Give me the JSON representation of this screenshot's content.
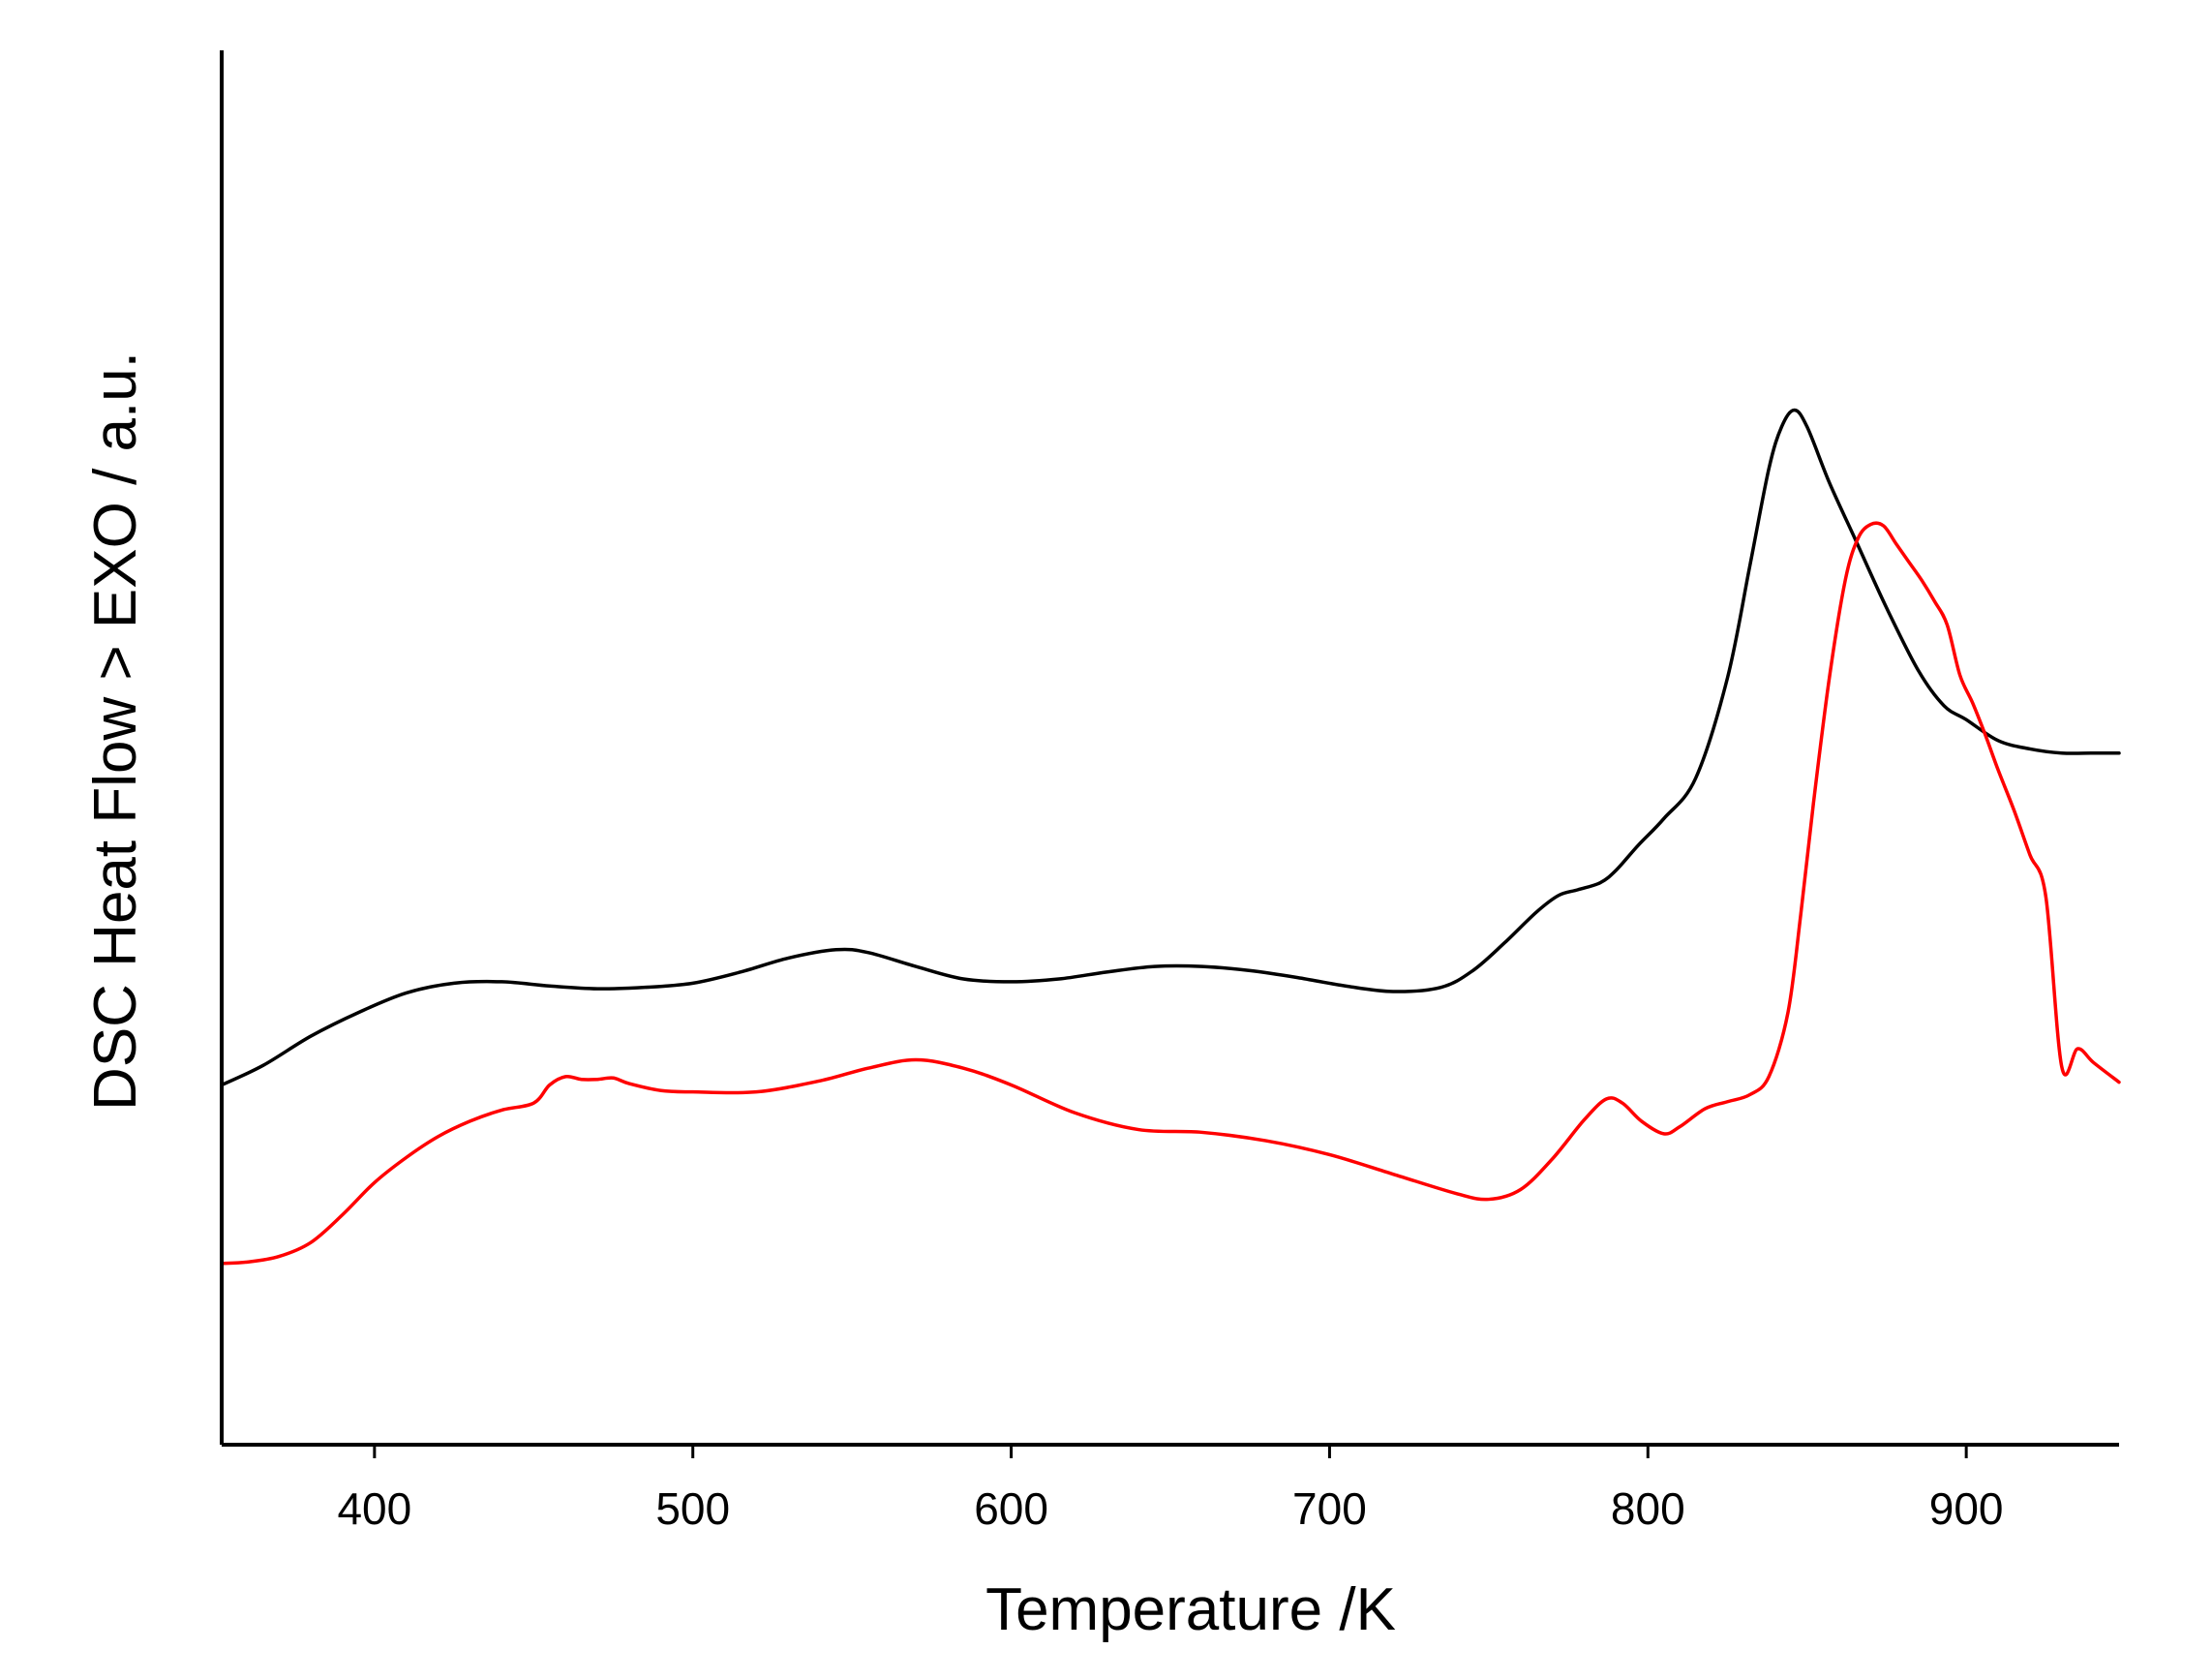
{
  "chart_data": {
    "type": "line",
    "title": "",
    "xlabel": "Temperature /K",
    "ylabel": "DSC Heat Flow > EXO / a.u.",
    "xlim": [
      352,
      948
    ],
    "ylim": [
      0,
      100
    ],
    "xticks": [
      400,
      500,
      600,
      700,
      800,
      900
    ],
    "yticks": [],
    "grid": false,
    "legend": "none",
    "series": [
      {
        "color": "#000000",
        "x": [
          352,
          365,
          380,
          395,
          410,
          425,
          440,
          455,
          470,
          485,
          500,
          515,
          530,
          545,
          555,
          570,
          585,
          600,
          615,
          630,
          645,
          660,
          675,
          690,
          705,
          720,
          735,
          745,
          755,
          765,
          772,
          778,
          785,
          790,
          797,
          805,
          815,
          825,
          832,
          838,
          842,
          846,
          850,
          857,
          865,
          875,
          885,
          893,
          900,
          910,
          920,
          930,
          940,
          948
        ],
        "y": [
          25.8,
          27.2,
          29.3,
          31.0,
          32.4,
          33.1,
          33.2,
          32.9,
          32.7,
          32.8,
          33.1,
          33.9,
          34.9,
          35.5,
          35.3,
          34.3,
          33.4,
          33.2,
          33.4,
          33.9,
          34.3,
          34.3,
          34.0,
          33.5,
          32.9,
          32.5,
          32.8,
          34.0,
          36.0,
          38.2,
          39.4,
          39.8,
          40.3,
          41.2,
          43.0,
          44.9,
          47.8,
          55.0,
          63.0,
          70.0,
          73.0,
          74.2,
          73.0,
          69.0,
          65.0,
          60.0,
          55.5,
          53.0,
          52.0,
          50.5,
          49.9,
          49.6,
          49.6,
          49.6
        ]
      },
      {
        "color": "#ff0000",
        "x": [
          352,
          360,
          370,
          380,
          390,
          400,
          410,
          420,
          430,
          440,
          450,
          455,
          460,
          465,
          470,
          475,
          480,
          490,
          500,
          520,
          540,
          555,
          570,
          585,
          600,
          620,
          640,
          660,
          680,
          700,
          720,
          740,
          750,
          760,
          770,
          780,
          787,
          792,
          798,
          805,
          810,
          818,
          825,
          832,
          838,
          844,
          848,
          852,
          857,
          862,
          866,
          870,
          874,
          878,
          882,
          886,
          890,
          894,
          898,
          902,
          906,
          910,
          915,
          920,
          925,
          930,
          935,
          940,
          948
        ],
        "y": [
          13.0,
          13.1,
          13.5,
          14.5,
          16.5,
          18.8,
          20.6,
          22.1,
          23.2,
          24.0,
          24.5,
          25.8,
          26.4,
          26.2,
          26.2,
          26.3,
          25.9,
          25.4,
          25.3,
          25.3,
          26.1,
          27.0,
          27.6,
          27.0,
          25.8,
          23.8,
          22.6,
          22.4,
          21.8,
          20.8,
          19.4,
          18.0,
          17.6,
          18.3,
          20.5,
          23.3,
          24.8,
          24.5,
          23.2,
          22.3,
          22.8,
          24.1,
          24.6,
          25.1,
          26.4,
          31.0,
          38.0,
          46.0,
          55.0,
          62.0,
          65.0,
          66.0,
          65.9,
          64.6,
          63.3,
          62.0,
          60.5,
          58.8,
          55.2,
          53.2,
          50.9,
          48.4,
          45.5,
          42.3,
          39.3,
          27.1,
          28.4,
          27.4,
          26.0
        ]
      }
    ]
  }
}
